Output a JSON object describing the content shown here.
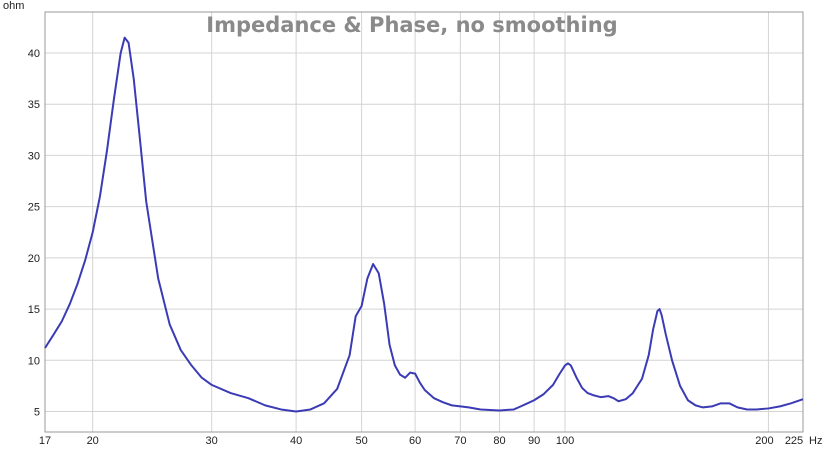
{
  "chart_data": {
    "type": "line",
    "title": "Impedance & Phase, no smoothing",
    "xlabel": "Hz",
    "ylabel": "ohm",
    "x_scale": "log",
    "xlim": [
      17,
      225
    ],
    "ylim": [
      3,
      44
    ],
    "x_ticks": [
      17,
      20,
      30,
      40,
      50,
      60,
      70,
      80,
      90,
      100,
      200,
      225
    ],
    "x_tick_labels": [
      "17",
      "20",
      "30",
      "40",
      "50",
      "60",
      "70",
      "80",
      "90",
      "100",
      "200",
      "225"
    ],
    "y_ticks": [
      5,
      10,
      15,
      20,
      25,
      30,
      35,
      40
    ],
    "y_tick_labels": [
      "5",
      "10",
      "15",
      "20",
      "25",
      "30",
      "35",
      "40"
    ],
    "grid": true,
    "colors": {
      "series": "#3b3bb5",
      "grid": "#d4d4d4",
      "frame": "#9a9a9a",
      "title": "#8a8a8a"
    },
    "series": [
      {
        "points": [
          [
            17,
            11.2
          ],
          [
            17.5,
            12.5
          ],
          [
            18,
            13.8
          ],
          [
            18.5,
            15.5
          ],
          [
            19,
            17.5
          ],
          [
            19.5,
            19.8
          ],
          [
            20,
            22.5
          ],
          [
            20.5,
            26.0
          ],
          [
            21,
            30.5
          ],
          [
            21.5,
            35.5
          ],
          [
            22,
            40.0
          ],
          [
            22.3,
            41.5
          ],
          [
            22.6,
            41.0
          ],
          [
            23,
            37.5
          ],
          [
            23.5,
            31.5
          ],
          [
            24,
            25.5
          ],
          [
            25,
            18.0
          ],
          [
            26,
            13.5
          ],
          [
            27,
            11.0
          ],
          [
            28,
            9.5
          ],
          [
            29,
            8.3
          ],
          [
            30,
            7.6
          ],
          [
            32,
            6.8
          ],
          [
            34,
            6.3
          ],
          [
            36,
            5.6
          ],
          [
            38,
            5.2
          ],
          [
            40,
            5.0
          ],
          [
            42,
            5.2
          ],
          [
            44,
            5.8
          ],
          [
            46,
            7.2
          ],
          [
            48,
            10.5
          ],
          [
            49,
            14.3
          ],
          [
            50,
            15.3
          ],
          [
            51,
            18.0
          ],
          [
            52,
            19.4
          ],
          [
            53,
            18.5
          ],
          [
            54,
            15.5
          ],
          [
            55,
            11.5
          ],
          [
            56,
            9.5
          ],
          [
            57,
            8.6
          ],
          [
            58,
            8.3
          ],
          [
            59,
            8.8
          ],
          [
            60,
            8.7
          ],
          [
            61,
            7.8
          ],
          [
            62,
            7.1
          ],
          [
            64,
            6.3
          ],
          [
            66,
            5.9
          ],
          [
            68,
            5.6
          ],
          [
            70,
            5.5
          ],
          [
            72,
            5.4
          ],
          [
            75,
            5.2
          ],
          [
            80,
            5.1
          ],
          [
            84,
            5.2
          ],
          [
            86,
            5.5
          ],
          [
            88,
            5.8
          ],
          [
            90,
            6.1
          ],
          [
            93,
            6.7
          ],
          [
            96,
            7.6
          ],
          [
            98,
            8.6
          ],
          [
            100,
            9.5
          ],
          [
            101,
            9.7
          ],
          [
            102,
            9.5
          ],
          [
            104,
            8.3
          ],
          [
            106,
            7.3
          ],
          [
            108,
            6.8
          ],
          [
            110,
            6.6
          ],
          [
            113,
            6.4
          ],
          [
            116,
            6.5
          ],
          [
            118,
            6.3
          ],
          [
            120,
            6.0
          ],
          [
            123,
            6.2
          ],
          [
            126,
            6.8
          ],
          [
            130,
            8.2
          ],
          [
            133,
            10.5
          ],
          [
            135,
            13.0
          ],
          [
            137,
            14.8
          ],
          [
            138,
            15.0
          ],
          [
            139,
            14.4
          ],
          [
            141,
            12.5
          ],
          [
            144,
            10.0
          ],
          [
            148,
            7.5
          ],
          [
            152,
            6.1
          ],
          [
            156,
            5.6
          ],
          [
            160,
            5.4
          ],
          [
            165,
            5.5
          ],
          [
            170,
            5.8
          ],
          [
            175,
            5.8
          ],
          [
            180,
            5.4
          ],
          [
            186,
            5.2
          ],
          [
            192,
            5.2
          ],
          [
            200,
            5.3
          ],
          [
            208,
            5.5
          ],
          [
            216,
            5.8
          ],
          [
            225,
            6.2
          ]
        ]
      }
    ]
  }
}
